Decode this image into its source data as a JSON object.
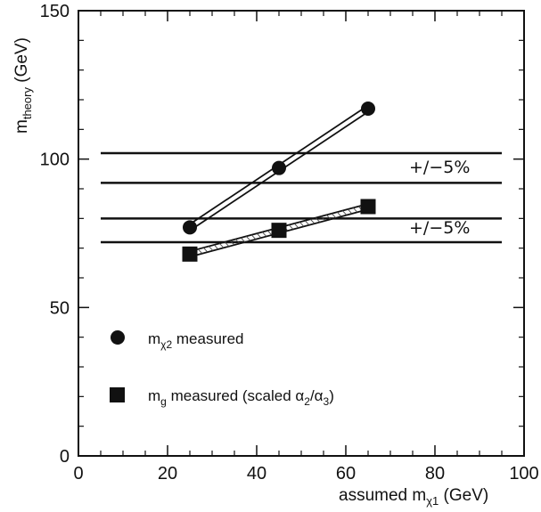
{
  "chart_data": {
    "type": "scatter",
    "xlabel": "assumed m",
    "xlabel_sub": "χ1",
    "xlabel_unit": " (GeV)",
    "ylabel": "m",
    "ylabel_sub": "theory",
    "ylabel_unit": " (GeV)",
    "xlim": [
      0,
      100
    ],
    "ylim": [
      0,
      150
    ],
    "x_ticks": [
      0,
      20,
      40,
      60,
      80,
      100
    ],
    "x_tick_labels": [
      "0",
      "20",
      "40",
      "60",
      "80",
      "100"
    ],
    "y_ticks": [
      0,
      50,
      100,
      150
    ],
    "y_tick_labels": [
      "0",
      "50",
      "100",
      "150"
    ],
    "grid": false,
    "legend_position": "bottom-left",
    "series": [
      {
        "name": "m_χ2 measured",
        "legend_main": "m",
        "legend_sub": "χ2",
        "legend_rest": " measured",
        "marker": "circle",
        "x": [
          25,
          45,
          65
        ],
        "y": [
          77,
          97,
          117
        ]
      },
      {
        "name": "m_g measured (scaled α2/α3)",
        "legend_main": "m",
        "legend_sub": "g",
        "legend_rest": " measured (scaled α",
        "legend_sub2": "2",
        "legend_mid": "/α",
        "legend_sub3": "3",
        "legend_end": ")",
        "marker": "square",
        "x": [
          25,
          45,
          65
        ],
        "y": [
          68,
          76,
          84
        ]
      }
    ],
    "bands": [
      {
        "y_low": 92,
        "y_high": 102,
        "label": "+/−5%"
      },
      {
        "y_low": 72,
        "y_high": 80,
        "label": "+/−5%"
      }
    ]
  }
}
